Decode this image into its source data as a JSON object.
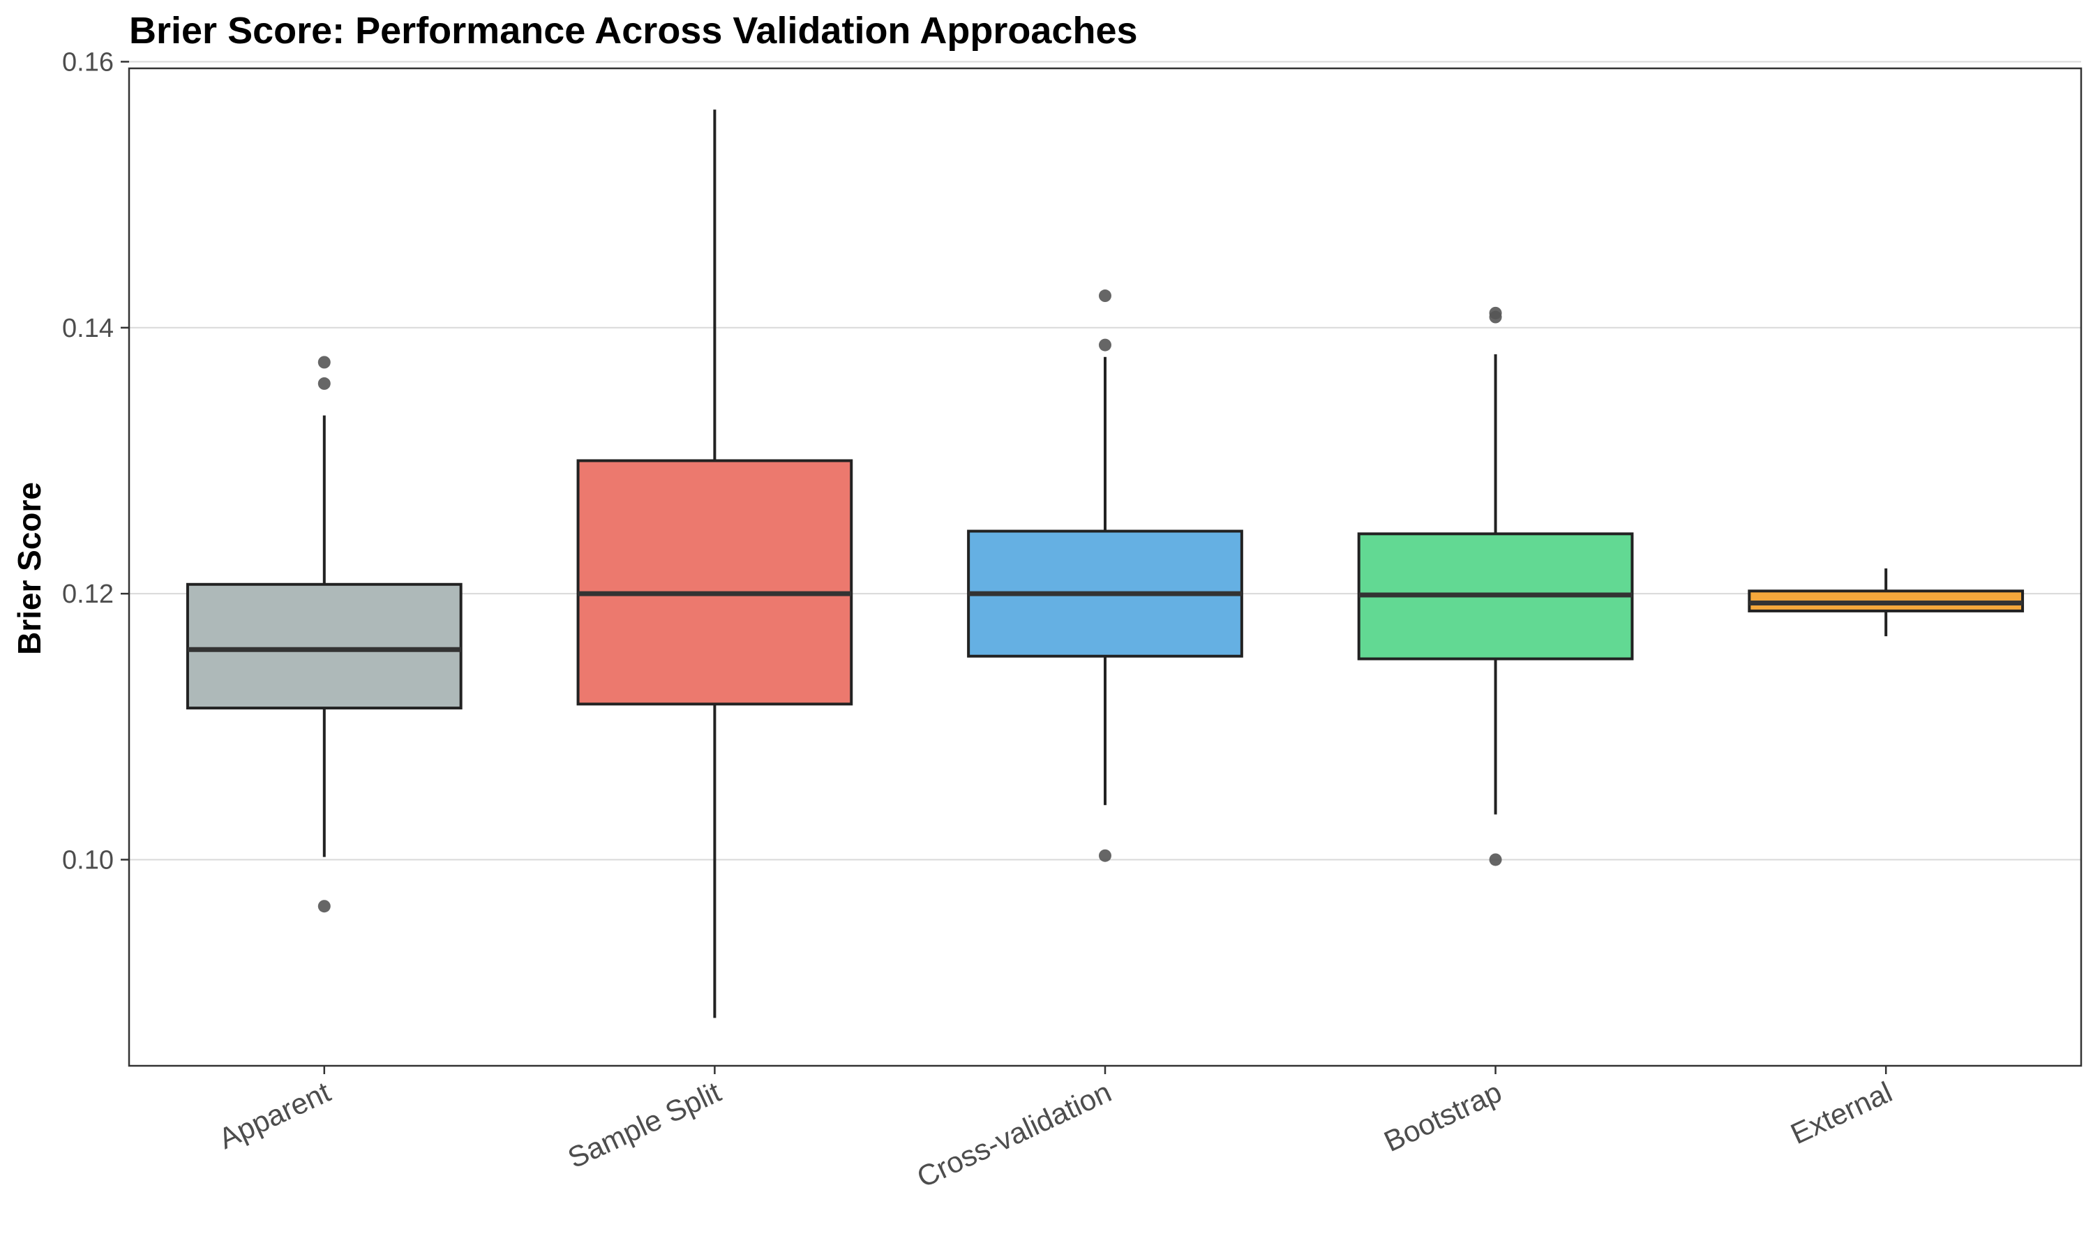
{
  "chart_data": {
    "type": "box",
    "title": "Brier Score: Performance Across Validation Approaches",
    "xlabel": "",
    "ylabel": "Brier Score",
    "ylim": [
      0.0845,
      0.1595
    ],
    "yticks": [
      0.1,
      0.12,
      0.14,
      0.16
    ],
    "ytick_labels": [
      "0.10",
      "0.12",
      "0.14",
      "0.16"
    ],
    "grid": "horizontal major",
    "legend": "none",
    "categories": [
      "Apparent",
      "Sample Split",
      "Cross-validation",
      "Bootstrap",
      "External"
    ],
    "boxes": [
      {
        "category": "Apparent",
        "color": "#AEB9B9",
        "whisker_low": 0.1002,
        "q1": 0.1114,
        "median": 0.1158,
        "q3": 0.1207,
        "whisker_high": 0.1334,
        "outliers": [
          0.1374,
          0.1358,
          0.0965
        ]
      },
      {
        "category": "Sample Split",
        "color": "#EC796E",
        "whisker_low": 0.0881,
        "q1": 0.1117,
        "median": 0.12,
        "q3": 0.13,
        "whisker_high": 0.1564,
        "outliers": []
      },
      {
        "category": "Cross-validation",
        "color": "#65B0E3",
        "whisker_low": 0.1041,
        "q1": 0.1153,
        "median": 0.12,
        "q3": 0.1247,
        "whisker_high": 0.1378,
        "outliers": [
          0.1424,
          0.1387,
          0.1003
        ]
      },
      {
        "category": "Bootstrap",
        "color": "#62D993",
        "whisker_low": 0.1034,
        "q1": 0.1151,
        "median": 0.1199,
        "q3": 0.1245,
        "whisker_high": 0.138,
        "outliers": [
          0.1411,
          0.1408,
          0.1
        ]
      },
      {
        "category": "External",
        "color": "#F4A73B",
        "whisker_low": 0.1168,
        "q1": 0.1187,
        "median": 0.1193,
        "q3": 0.1202,
        "whisker_high": 0.1219,
        "outliers": []
      }
    ],
    "style": {
      "box_outline": "#222222",
      "median_line": "#333333",
      "outlier_fill": "#555555",
      "grid_color": "#d9d9d9",
      "panel_border": "#333333",
      "text_color": "#4d4d4d"
    }
  }
}
